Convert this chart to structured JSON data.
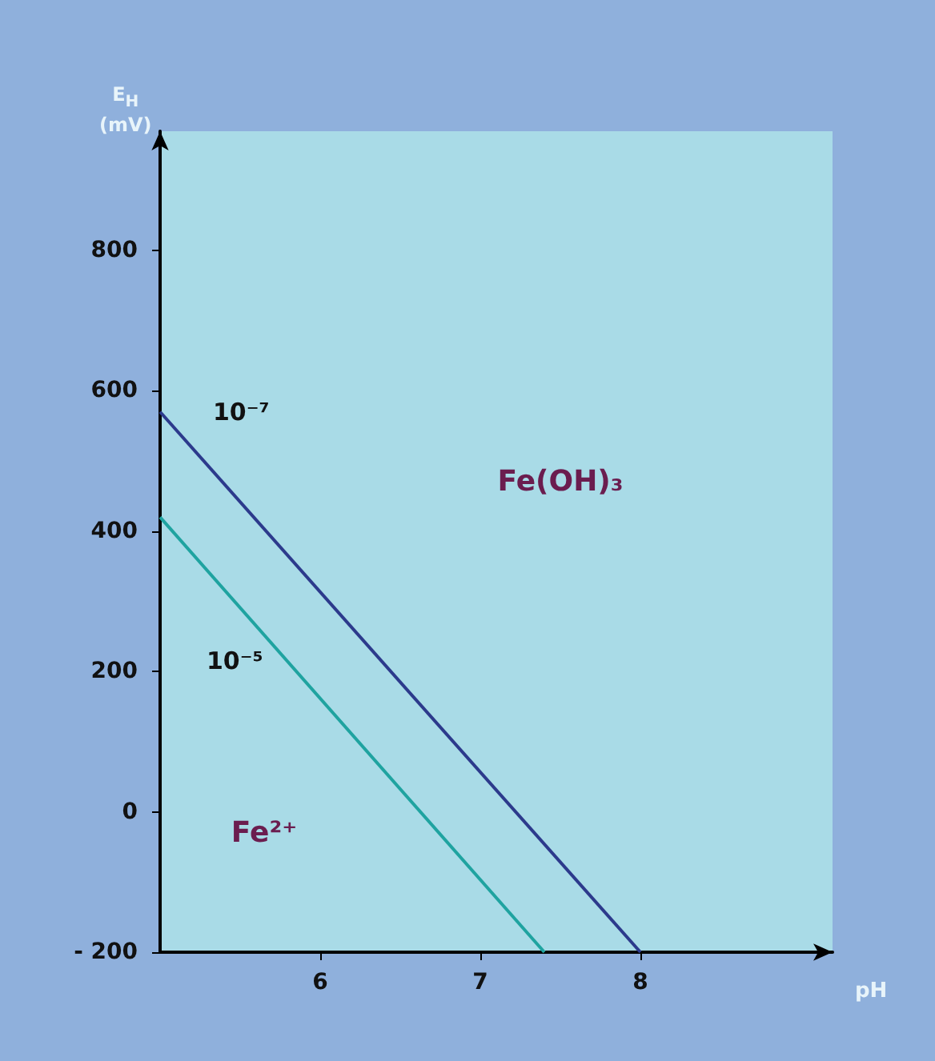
{
  "chart_data": {
    "type": "line",
    "xlabel": "pH",
    "ylabel": "E$_{H}$\n(mV)",
    "xlim": [
      5,
      9.2
    ],
    "ylim": [
      -200,
      970
    ],
    "xticks": [
      6,
      7,
      8
    ],
    "yticks": [
      {
        "value": -200,
        "label": "- 200"
      },
      0,
      200,
      400,
      600,
      800
    ],
    "series": [
      {
        "name": "10⁻⁷",
        "color": "#2c3a8c",
        "x": [
          5,
          8
        ],
        "values": [
          570,
          -200
        ]
      },
      {
        "name": "10⁻⁵",
        "color": "#1fa3a0",
        "x": [
          5,
          7.4
        ],
        "values": [
          420,
          -200
        ]
      }
    ],
    "annotations": [
      "Fe(OH)₃",
      "Fe²⁺"
    ],
    "marker": "none",
    "grid": false,
    "legend": false
  }
}
